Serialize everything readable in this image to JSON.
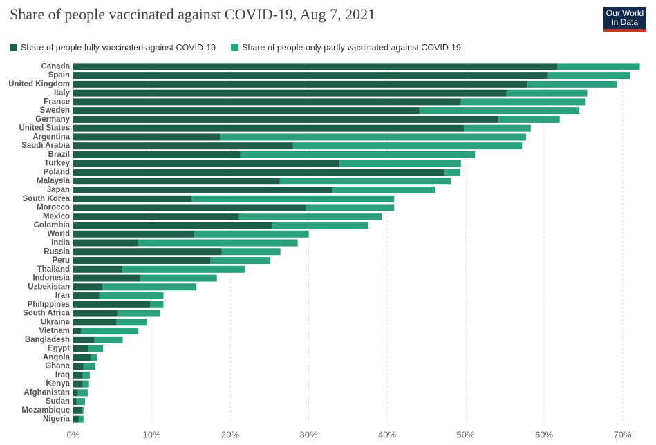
{
  "chart_data": {
    "type": "stacked-barh",
    "title": "Share of people vaccinated against COVID-19, Aug 7, 2021",
    "categories": [
      "Canada",
      "Spain",
      "United Kingdom",
      "Italy",
      "France",
      "Sweden",
      "Germany",
      "United States",
      "Argentina",
      "Saudi Arabia",
      "Brazil",
      "Turkey",
      "Poland",
      "Malaysia",
      "Japan",
      "South Korea",
      "Morocco",
      "Mexico",
      "Colombia",
      "World",
      "India",
      "Russia",
      "Peru",
      "Thailand",
      "Indonesia",
      "Uzbekistan",
      "Iran",
      "Philippines",
      "South Africa",
      "Ukraine",
      "Vietnam",
      "Bangladesh",
      "Egypt",
      "Angola",
      "Ghana",
      "Iraq",
      "Kenya",
      "Afghanistan",
      "Sudan",
      "Mozambique",
      "Nigeria"
    ],
    "series": [
      {
        "name": "Share of people fully vaccinated against COVID-19",
        "color": "#1f5d4b",
        "values": [
          61.7,
          60.5,
          57.9,
          55.2,
          49.4,
          44.1,
          54.2,
          49.8,
          18.7,
          28.0,
          21.3,
          33.9,
          47.3,
          26.3,
          33.0,
          15.1,
          29.6,
          21.1,
          25.3,
          15.4,
          8.2,
          18.9,
          17.5,
          6.2,
          8.5,
          3.7,
          3.3,
          9.8,
          5.6,
          5.5,
          1.0,
          2.7,
          1.9,
          2.2,
          1.3,
          1.2,
          1.2,
          0.6,
          0.4,
          1.1,
          0.7
        ]
      },
      {
        "name": "Share of people only partly vaccinated against COVID-19",
        "color": "#2aa07d",
        "values": [
          10.5,
          10.5,
          11.4,
          10.3,
          15.9,
          20.4,
          7.8,
          8.5,
          39.0,
          29.2,
          29.9,
          15.5,
          2.0,
          21.8,
          13.1,
          25.8,
          11.3,
          18.2,
          12.3,
          14.6,
          20.4,
          7.5,
          7.6,
          15.7,
          9.8,
          12.0,
          8.2,
          1.7,
          5.5,
          3.9,
          7.3,
          3.6,
          1.9,
          0.8,
          1.5,
          0.9,
          0.8,
          1.3,
          1.1,
          0.2,
          0.6
        ]
      }
    ],
    "xlim": [
      0,
      74
    ],
    "xticks": [
      {
        "value": 0,
        "label": "0%"
      },
      {
        "value": 10,
        "label": "10%"
      },
      {
        "value": 20,
        "label": "20%"
      },
      {
        "value": 30,
        "label": "30%"
      },
      {
        "value": 40,
        "label": "40%"
      },
      {
        "value": 50,
        "label": "50%"
      },
      {
        "value": 60,
        "label": "60%"
      },
      {
        "value": 70,
        "label": "70%"
      }
    ],
    "grid": true
  },
  "logo": {
    "line1": "Our World",
    "line2": "in Data"
  }
}
